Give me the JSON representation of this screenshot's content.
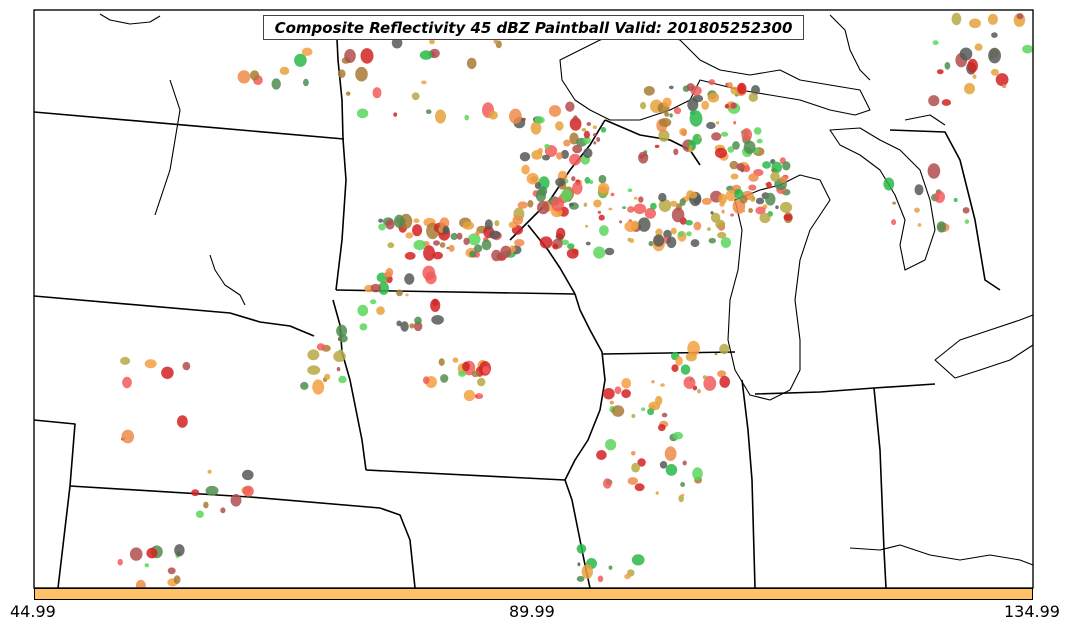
{
  "title": "Composite Reflectivity 45 dBZ Paintball Valid: 201805252300",
  "colors": {
    "member_palette": [
      "#f25a5a",
      "#5cd65c",
      "#b7a844",
      "#555a56",
      "#b24e4e",
      "#f5a042",
      "#4f8c4f",
      "#ee8a4a",
      "#a87a33",
      "#d42222",
      "#e6a23c",
      "#2ab84a"
    ],
    "colorbar_fill": "#ffc266",
    "boundary": "#000000"
  },
  "colorbar": {
    "min_label": "44.99",
    "mid_label": "89.99",
    "max_label": "134.99"
  }
}
